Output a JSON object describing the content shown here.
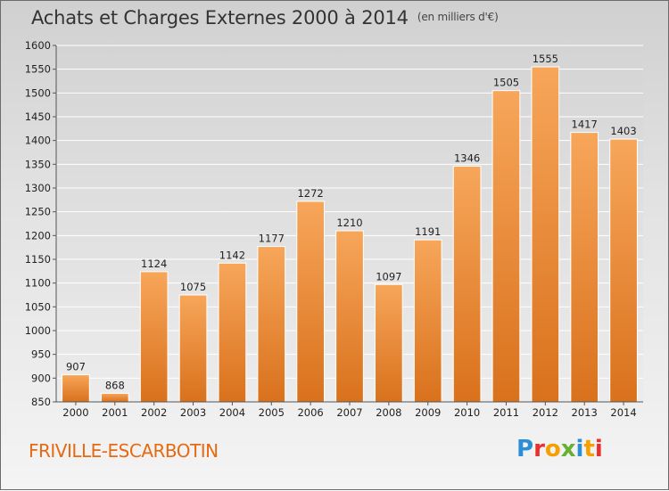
{
  "header": {
    "title": "Achats et Charges Externes 2000 à 2014",
    "unit_note": "(en milliers d'€)"
  },
  "footer": {
    "place": "FRIVILLE-ESCARBOTIN",
    "logo_text": "Proxiti"
  },
  "colors": {
    "bar_top": "#f7a65a",
    "bar_bottom": "#d9711c",
    "accent": "#e56a12",
    "grid": "#ffffff",
    "axis": "#555555"
  },
  "chart_data": {
    "type": "bar",
    "title": "Achats et Charges Externes 2000 à 2014",
    "subtitle": "(en milliers d'€)",
    "xlabel": "",
    "ylabel": "",
    "categories": [
      "2000",
      "2001",
      "2002",
      "2003",
      "2004",
      "2005",
      "2006",
      "2007",
      "2008",
      "2009",
      "2010",
      "2011",
      "2012",
      "2013",
      "2014"
    ],
    "values": [
      907,
      868,
      1124,
      1075,
      1142,
      1177,
      1272,
      1210,
      1097,
      1191,
      1346,
      1505,
      1555,
      1417,
      1403
    ],
    "ylim": [
      850,
      1600
    ],
    "yticks": [
      850,
      900,
      950,
      1000,
      1050,
      1100,
      1150,
      1200,
      1250,
      1300,
      1350,
      1400,
      1450,
      1500,
      1550,
      1600
    ],
    "grid": true,
    "legend": "none"
  }
}
